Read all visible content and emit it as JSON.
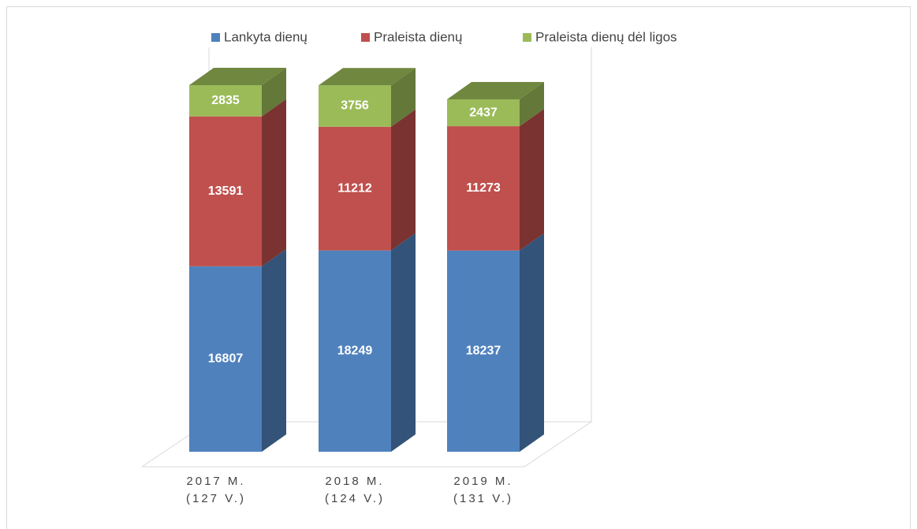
{
  "chart_data": {
    "type": "bar3d_stacked",
    "categories": [
      "2017 M. (127 V.)",
      "2018 M. (124 V.)",
      "2019 M. (131 V.)"
    ],
    "series": [
      {
        "name": "Lankyta dienų",
        "color": "#4f81bd",
        "values": [
          16807,
          18249,
          18237
        ]
      },
      {
        "name": "Praleista dienų",
        "color": "#c0504d",
        "values": [
          13591,
          11212,
          11273
        ]
      },
      {
        "name": "Praleista dienų dėl ligos",
        "color": "#9bbb59",
        "values": [
          2835,
          3756,
          2437
        ]
      }
    ],
    "legend": "top"
  }
}
